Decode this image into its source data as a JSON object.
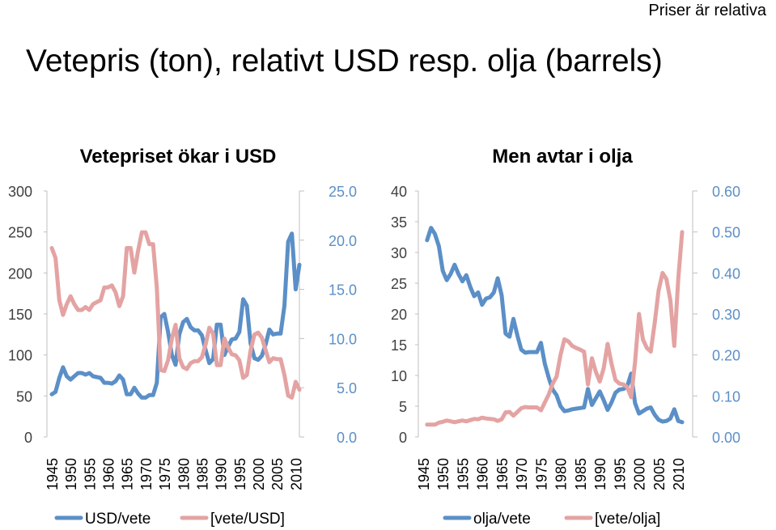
{
  "page": {
    "note": "Priser är relativa",
    "title": "Vetepris (ton), relativt USD resp. olja (barrels)"
  },
  "colors": {
    "series_primary": "#5b8fc7",
    "series_inverse": "#e4a3a3",
    "axis": "#bfbfbf",
    "left_tick_text": "#404040",
    "right_tick_text": "#5b8fc7"
  },
  "chart_data": [
    {
      "type": "line",
      "title": "Vetepriset ökar i USD",
      "x_ticks": [
        "1945",
        "1950",
        "1955",
        "1960",
        "1965",
        "1970",
        "1975",
        "1980",
        "1985",
        "1990",
        "1995",
        "2000",
        "2005",
        "2010"
      ],
      "xlim": [
        1945,
        2011
      ],
      "y_left": {
        "lim": [
          0,
          300
        ],
        "ticks": [
          "0",
          "50",
          "100",
          "150",
          "200",
          "250",
          "300"
        ]
      },
      "y_right": {
        "lim": [
          0,
          25
        ],
        "ticks": [
          "0.0",
          "5.0",
          "10.0",
          "15.0",
          "20.0",
          "25.0"
        ]
      },
      "legend_position": "bottom",
      "series": [
        {
          "name": "USD/vete",
          "axis": "left",
          "color": "#5b8fc7",
          "x": [
            1945,
            1946,
            1947,
            1948,
            1949,
            1950,
            1951,
            1952,
            1953,
            1954,
            1955,
            1956,
            1957,
            1958,
            1959,
            1960,
            1961,
            1962,
            1963,
            1964,
            1965,
            1966,
            1967,
            1968,
            1969,
            1970,
            1971,
            1972,
            1973,
            1974,
            1975,
            1976,
            1977,
            1978,
            1979,
            1980,
            1981,
            1982,
            1983,
            1984,
            1985,
            1986,
            1987,
            1988,
            1989,
            1990,
            1991,
            1992,
            1993,
            1994,
            1995,
            1996,
            1997,
            1998,
            1999,
            2000,
            2001,
            2002,
            2003,
            2004,
            2005,
            2006,
            2007,
            2008,
            2009,
            2010,
            2011
          ],
          "y": [
            52,
            55,
            72,
            85,
            74,
            70,
            74,
            78,
            78,
            76,
            78,
            74,
            73,
            72,
            66,
            66,
            65,
            68,
            75,
            70,
            52,
            52,
            60,
            53,
            48,
            48,
            51,
            51,
            66,
            146,
            150,
            128,
            100,
            88,
            125,
            140,
            144,
            134,
            130,
            130,
            124,
            106,
            90,
            95,
            137,
            137,
            100,
            110,
            119,
            120,
            128,
            168,
            160,
            114,
            96,
            94,
            99,
            113,
            131,
            125,
            126,
            126,
            160,
            238,
            248,
            180,
            210
          ]
        },
        {
          "name": "[vete/USD]",
          "axis": "right",
          "color": "#e4a3a3",
          "x": [
            1945,
            1946,
            1947,
            1948,
            1949,
            1950,
            1951,
            1952,
            1953,
            1954,
            1955,
            1956,
            1957,
            1958,
            1959,
            1960,
            1961,
            1962,
            1963,
            1964,
            1965,
            1966,
            1967,
            1968,
            1969,
            1970,
            1971,
            1972,
            1973,
            1974,
            1975,
            1976,
            1977,
            1978,
            1979,
            1980,
            1981,
            1982,
            1983,
            1984,
            1985,
            1986,
            1987,
            1988,
            1989,
            1990,
            1991,
            1992,
            1993,
            1994,
            1995,
            1996,
            1997,
            1998,
            1999,
            2000,
            2001,
            2002,
            2003,
            2004,
            2005,
            2006,
            2007,
            2008,
            2009,
            2010,
            2011
          ],
          "y": [
            19.2,
            18.2,
            13.9,
            12.4,
            13.5,
            14.3,
            13.5,
            12.9,
            12.9,
            13.2,
            12.9,
            13.5,
            13.7,
            13.9,
            15.2,
            15.2,
            15.4,
            14.7,
            13.3,
            14.3,
            19.2,
            19.2,
            16.7,
            18.9,
            20.8,
            20.8,
            19.6,
            19.6,
            15.2,
            6.8,
            6.7,
            7.8,
            10.0,
            11.4,
            8.0,
            7.1,
            6.9,
            7.5,
            7.7,
            7.7,
            8.1,
            9.4,
            11.1,
            10.5,
            7.3,
            7.3,
            10.0,
            9.1,
            8.4,
            8.3,
            7.8,
            6.0,
            6.3,
            8.8,
            10.4,
            10.6,
            10.1,
            8.8,
            7.6,
            8.0,
            7.9,
            7.9,
            6.3,
            4.2,
            4.0,
            5.6,
            4.8
          ]
        }
      ]
    },
    {
      "type": "line",
      "title": "Men avtar i olja",
      "x_ticks": [
        "1945",
        "1950",
        "1955",
        "1960",
        "1965",
        "1970",
        "1975",
        "1980",
        "1985",
        "1990",
        "1995",
        "2000",
        "2005",
        "2010"
      ],
      "xlim": [
        1945,
        2011
      ],
      "y_left": {
        "lim": [
          0,
          40
        ],
        "ticks": [
          "0",
          "5",
          "10",
          "15",
          "20",
          "25",
          "30",
          "35",
          "40"
        ]
      },
      "y_right": {
        "lim": [
          0,
          0.6
        ],
        "ticks": [
          "0.00",
          "0.10",
          "0.20",
          "0.30",
          "0.40",
          "0.50",
          "0.60"
        ]
      },
      "legend_position": "bottom",
      "series": [
        {
          "name": "olja/vete",
          "axis": "left",
          "color": "#5b8fc7",
          "x": [
            1946,
            1947,
            1948,
            1949,
            1950,
            1951,
            1952,
            1953,
            1954,
            1955,
            1956,
            1957,
            1958,
            1959,
            1960,
            1961,
            1962,
            1963,
            1964,
            1965,
            1966,
            1967,
            1968,
            1969,
            1970,
            1971,
            1972,
            1973,
            1974,
            1975,
            1976,
            1977,
            1978,
            1979,
            1980,
            1981,
            1982,
            1983,
            1984,
            1985,
            1986,
            1987,
            1988,
            1989,
            1990,
            1991,
            1992,
            1993,
            1994,
            1995,
            1996,
            1997,
            1998,
            1999,
            2000,
            2001,
            2002,
            2003,
            2004,
            2005,
            2006,
            2007,
            2008,
            2009,
            2010,
            2011
          ],
          "y": [
            32,
            34,
            33,
            31,
            27,
            25.5,
            26.5,
            28,
            26.5,
            25.3,
            26.3,
            24.4,
            22.9,
            23.5,
            21.5,
            22.5,
            22.7,
            23.5,
            25.8,
            23,
            16.8,
            16.3,
            19.2,
            16.5,
            14.2,
            13.7,
            13.8,
            13.8,
            13.8,
            15.3,
            11.9,
            9.6,
            7.7,
            6.8,
            5,
            4.2,
            4.3,
            4.5,
            4.6,
            4.7,
            4.8,
            7.8,
            5.2,
            6.3,
            7.4,
            6,
            4.4,
            5.6,
            7.2,
            7.7,
            7.8,
            8.2,
            10.3,
            5.5,
            3.8,
            4.2,
            4.6,
            4.8,
            3.6,
            2.8,
            2.5,
            2.6,
            3,
            4.5,
            2.6,
            2.4
          ]
        },
        {
          "name": "[vete/olja]",
          "axis": "right",
          "color": "#e4a3a3",
          "x": [
            1946,
            1947,
            1948,
            1949,
            1950,
            1951,
            1952,
            1953,
            1954,
            1955,
            1956,
            1957,
            1958,
            1959,
            1960,
            1961,
            1962,
            1963,
            1964,
            1965,
            1966,
            1967,
            1968,
            1969,
            1970,
            1971,
            1972,
            1973,
            1974,
            1975,
            1976,
            1977,
            1978,
            1979,
            1980,
            1981,
            1982,
            1983,
            1984,
            1985,
            1986,
            1987,
            1988,
            1989,
            1990,
            1991,
            1992,
            1993,
            1994,
            1995,
            1996,
            1997,
            1998,
            1999,
            2000,
            2001,
            2002,
            2003,
            2004,
            2005,
            2006,
            2007,
            2008,
            2009,
            2010,
            2011
          ],
          "y": [
            0.03,
            0.03,
            0.03,
            0.035,
            0.037,
            0.04,
            0.038,
            0.036,
            0.038,
            0.04,
            0.038,
            0.041,
            0.044,
            0.043,
            0.047,
            0.045,
            0.044,
            0.043,
            0.039,
            0.043,
            0.06,
            0.061,
            0.052,
            0.061,
            0.07,
            0.073,
            0.072,
            0.072,
            0.072,
            0.065,
            0.084,
            0.104,
            0.13,
            0.147,
            0.2,
            0.238,
            0.233,
            0.222,
            0.217,
            0.213,
            0.208,
            0.128,
            0.192,
            0.159,
            0.135,
            0.167,
            0.227,
            0.179,
            0.139,
            0.13,
            0.128,
            0.122,
            0.097,
            0.182,
            0.3,
            0.238,
            0.217,
            0.208,
            0.278,
            0.357,
            0.4,
            0.385,
            0.333,
            0.222,
            0.385,
            0.5
          ]
        }
      ]
    }
  ]
}
